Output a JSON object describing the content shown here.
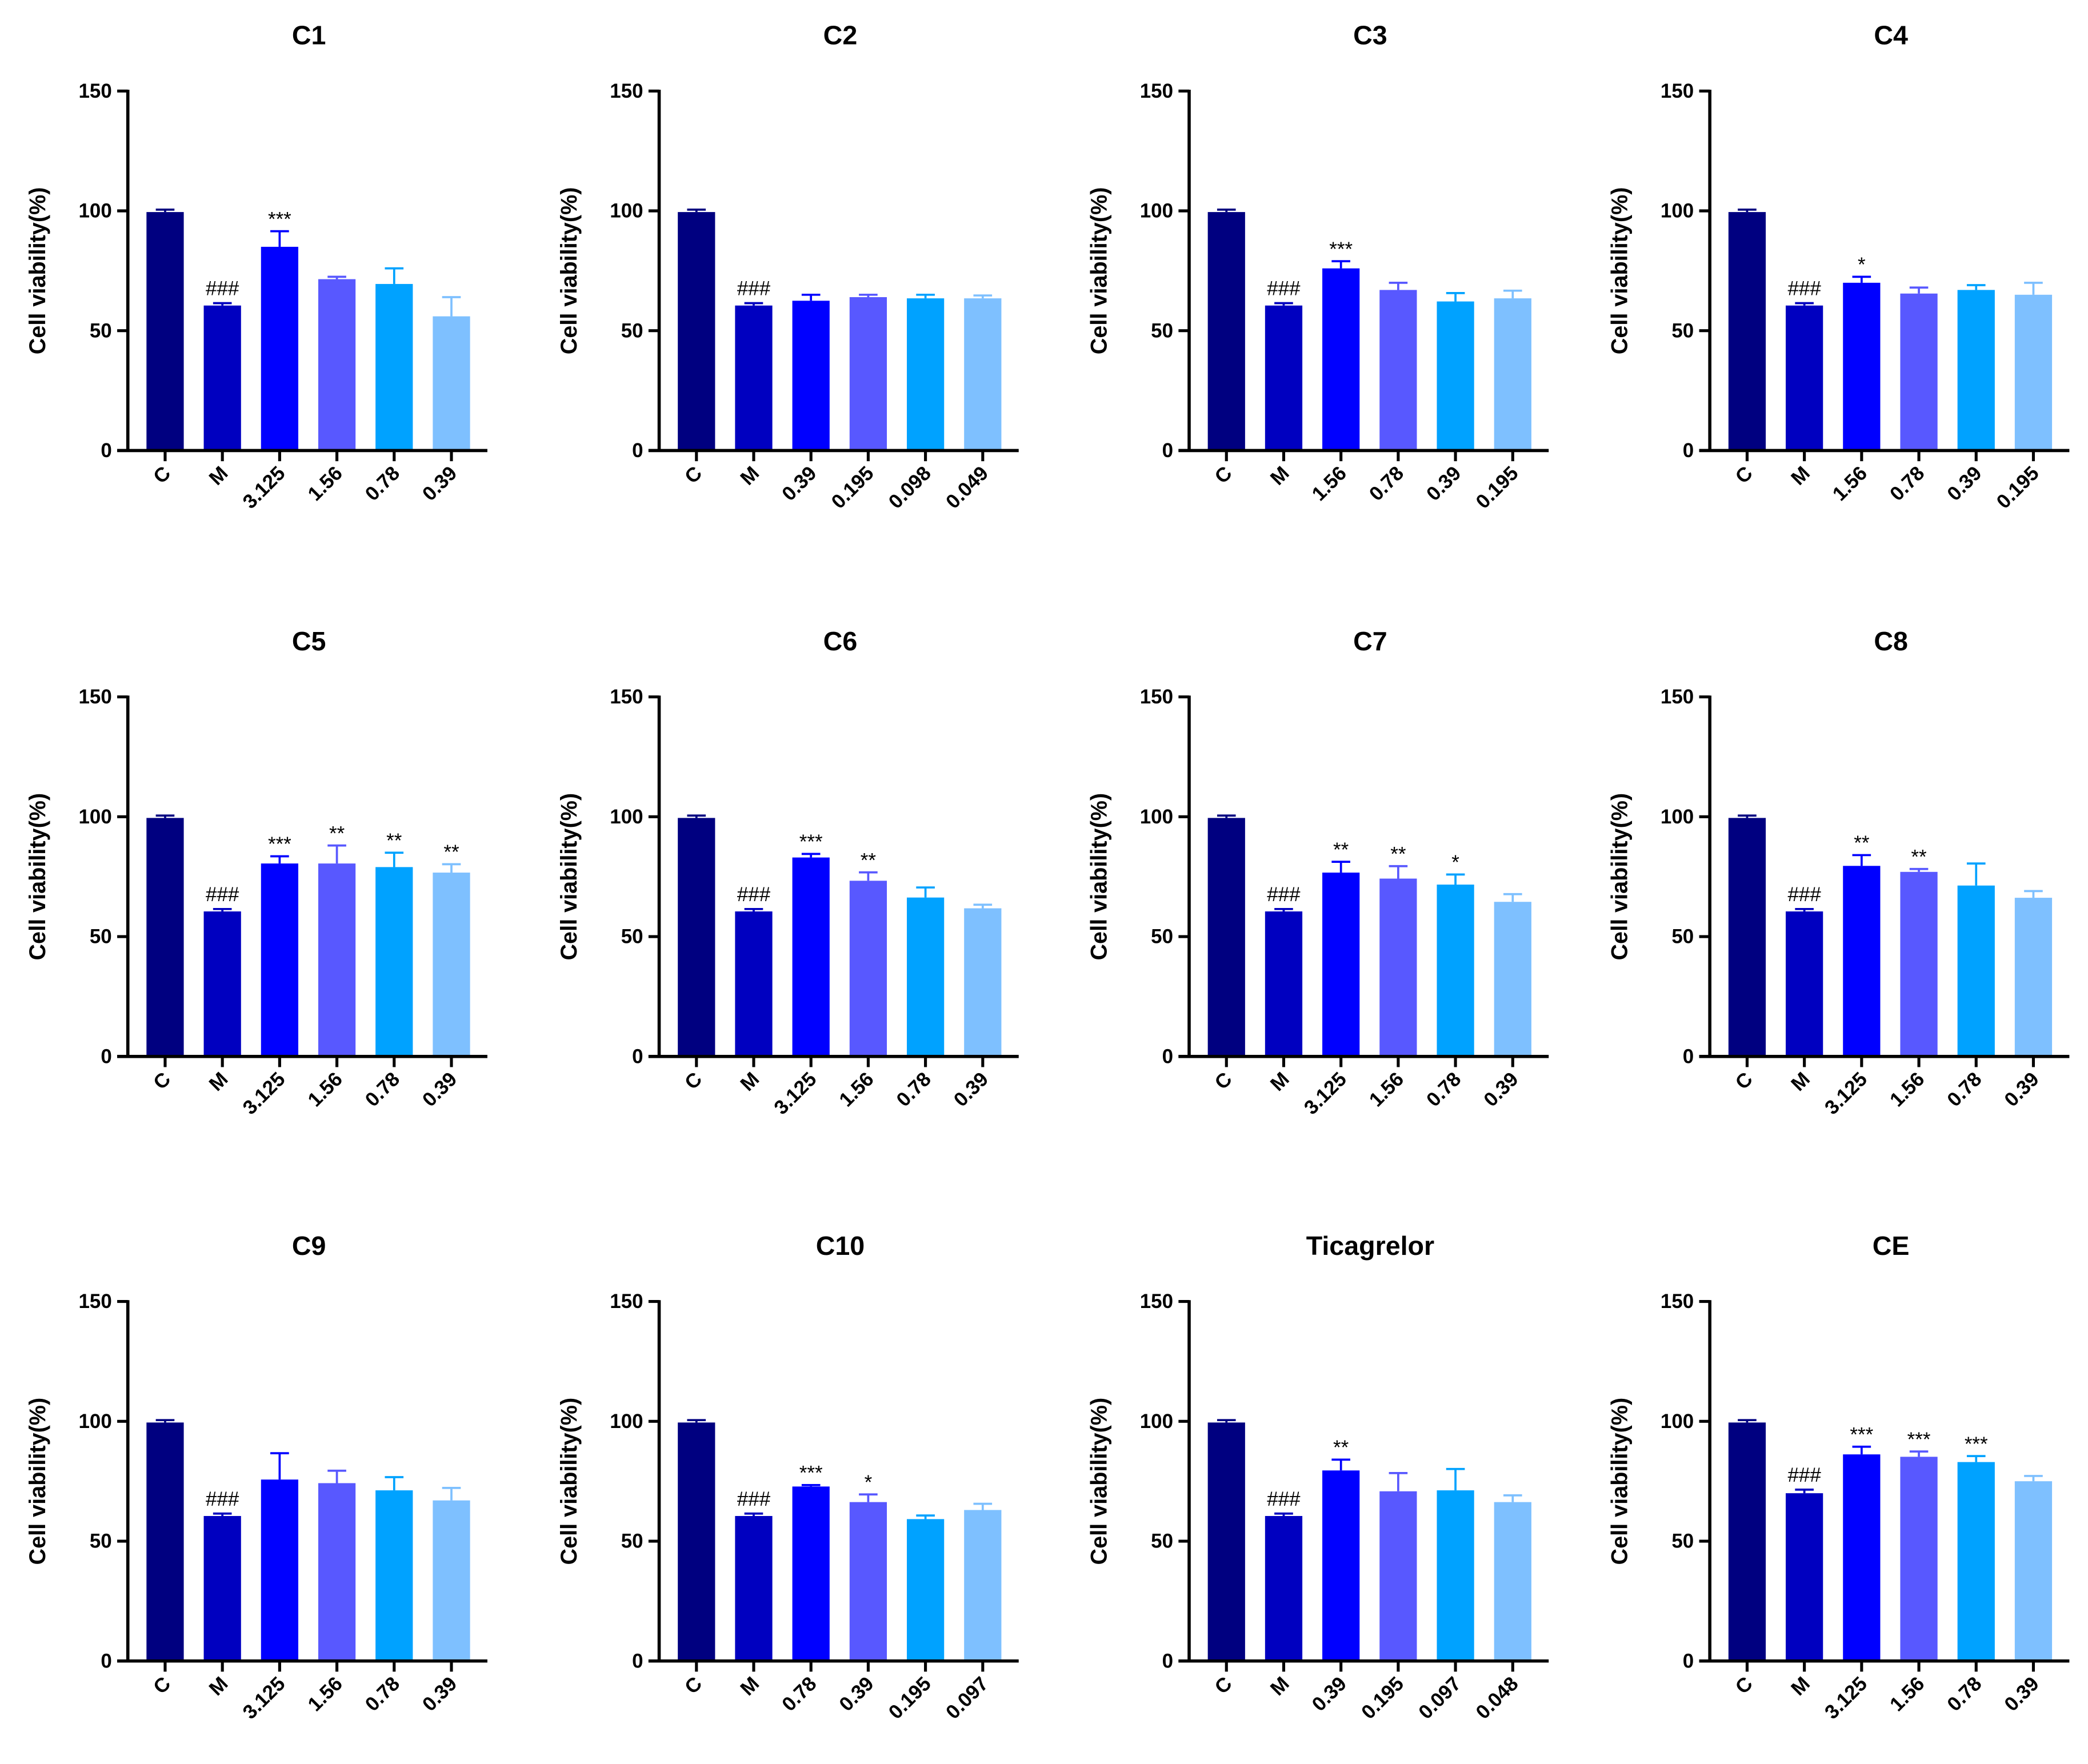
{
  "colors": [
    "#000080",
    "#0000C0",
    "#0000FF",
    "#5858FF",
    "#00A2FF",
    "#7EC0FF"
  ],
  "chart_data": [
    {
      "type": "bar",
      "title": "C1",
      "ylabel": "Cell viability(%)",
      "ylim": [
        0,
        150
      ],
      "yticks": [
        0,
        50,
        100,
        150
      ],
      "categories": [
        "C",
        "M",
        "3.125",
        "1.56",
        "0.78",
        "0.39"
      ],
      "values": [
        99.5,
        60.5,
        85,
        71.5,
        69.5,
        56
      ],
      "errors": [
        1,
        1,
        6.5,
        1,
        6.5,
        8
      ],
      "annotations": [
        "",
        "###",
        "***",
        "",
        "",
        ""
      ]
    },
    {
      "type": "bar",
      "title": "C2",
      "ylabel": "Cell viability(%)",
      "ylim": [
        0,
        150
      ],
      "yticks": [
        0,
        50,
        100,
        150
      ],
      "categories": [
        "C",
        "M",
        "0.39",
        "0.195",
        "0.098",
        "0.049"
      ],
      "values": [
        99.5,
        60.5,
        62.5,
        64,
        63.5,
        63.5
      ],
      "errors": [
        1,
        1,
        2.5,
        1,
        1.5,
        1.2
      ],
      "annotations": [
        "",
        "###",
        "",
        "",
        "",
        ""
      ]
    },
    {
      "type": "bar",
      "title": "C3",
      "ylabel": "Cell viability(%)",
      "ylim": [
        0,
        150
      ],
      "yticks": [
        0,
        50,
        100,
        150
      ],
      "categories": [
        "C",
        "M",
        "1.56",
        "0.78",
        "0.39",
        "0.195"
      ],
      "values": [
        99.5,
        60.5,
        76,
        67,
        62.2,
        63.5
      ],
      "errors": [
        1,
        1,
        3,
        3,
        3.5,
        3.2
      ],
      "annotations": [
        "",
        "###",
        "***",
        "",
        "",
        ""
      ]
    },
    {
      "type": "bar",
      "title": "C4",
      "ylabel": "Cell viability(%)",
      "ylim": [
        0,
        150
      ],
      "yticks": [
        0,
        50,
        100,
        150
      ],
      "categories": [
        "C",
        "M",
        "1.56",
        "0.78",
        "0.39",
        "0.195"
      ],
      "values": [
        99.5,
        60.5,
        70,
        65.5,
        67,
        65
      ],
      "errors": [
        1,
        1,
        2.5,
        2.5,
        2,
        5
      ],
      "annotations": [
        "",
        "###",
        "*",
        "",
        "",
        ""
      ]
    },
    {
      "type": "bar",
      "title": "C5",
      "ylabel": "Cell viability(%)",
      "ylim": [
        0,
        150
      ],
      "yticks": [
        0,
        50,
        100,
        150
      ],
      "categories": [
        "C",
        "M",
        "3.125",
        "1.56",
        "0.78",
        "0.39"
      ],
      "values": [
        99.5,
        60.5,
        80.5,
        80.5,
        79,
        76.7
      ],
      "errors": [
        1,
        1,
        3,
        7.5,
        6,
        3.5
      ],
      "annotations": [
        "",
        "###",
        "***",
        "**",
        "**",
        "**"
      ]
    },
    {
      "type": "bar",
      "title": "C6",
      "ylabel": "Cell viability(%)",
      "ylim": [
        0,
        150
      ],
      "yticks": [
        0,
        50,
        100,
        150
      ],
      "categories": [
        "C",
        "M",
        "3.125",
        "1.56",
        "0.78",
        "0.39"
      ],
      "values": [
        99.5,
        60.5,
        83,
        73.3,
        66.3,
        61.8
      ],
      "errors": [
        1,
        1,
        1.5,
        3.5,
        4.2,
        1.5
      ],
      "annotations": [
        "",
        "###",
        "***",
        "**",
        "",
        ""
      ]
    },
    {
      "type": "bar",
      "title": "C7",
      "ylabel": "Cell viability(%)",
      "ylim": [
        0,
        150
      ],
      "yticks": [
        0,
        50,
        100,
        150
      ],
      "categories": [
        "C",
        "M",
        "3.125",
        "1.56",
        "0.78",
        "0.39"
      ],
      "values": [
        99.5,
        60.5,
        76.7,
        74.2,
        71.7,
        64.5
      ],
      "errors": [
        1,
        1,
        4.5,
        5.2,
        4.2,
        3.2
      ],
      "annotations": [
        "",
        "###",
        "**",
        "**",
        "*",
        ""
      ]
    },
    {
      "type": "bar",
      "title": "C8",
      "ylabel": "Cell viability(%)",
      "ylim": [
        0,
        150
      ],
      "yticks": [
        0,
        50,
        100,
        150
      ],
      "categories": [
        "C",
        "M",
        "3.125",
        "1.56",
        "0.78",
        "0.39"
      ],
      "values": [
        99.5,
        60.5,
        79.5,
        77,
        71.3,
        66.2
      ],
      "errors": [
        1,
        1,
        4.5,
        1.2,
        9.2,
        2.8
      ],
      "annotations": [
        "",
        "###",
        "**",
        "**",
        "",
        ""
      ]
    },
    {
      "type": "bar",
      "title": "C9",
      "ylabel": "Cell viability(%)",
      "ylim": [
        0,
        150
      ],
      "yticks": [
        0,
        50,
        100,
        150
      ],
      "categories": [
        "C",
        "M",
        "3.125",
        "1.56",
        "0.78",
        "0.39"
      ],
      "values": [
        99.5,
        60.5,
        75.7,
        74.2,
        71.2,
        67
      ],
      "errors": [
        1,
        1,
        11,
        5.2,
        5.5,
        5.2
      ],
      "annotations": [
        "",
        "###",
        "",
        "",
        "",
        ""
      ]
    },
    {
      "type": "bar",
      "title": "C10",
      "ylabel": "Cell viability(%)",
      "ylim": [
        0,
        150
      ],
      "yticks": [
        0,
        50,
        100,
        150
      ],
      "categories": [
        "C",
        "M",
        "0.78",
        "0.39",
        "0.195",
        "0.097"
      ],
      "values": [
        99.5,
        60.5,
        72.8,
        66.3,
        59.2,
        63
      ],
      "errors": [
        1,
        1,
        0.6,
        3.2,
        1.5,
        2.6
      ],
      "annotations": [
        "",
        "###",
        "***",
        "*",
        "",
        ""
      ]
    },
    {
      "type": "bar",
      "title": "Ticagrelor",
      "ylabel": "Cell viability(%)",
      "ylim": [
        0,
        150
      ],
      "yticks": [
        0,
        50,
        100,
        150
      ],
      "categories": [
        "C",
        "M",
        "0.39",
        "0.195",
        "0.097",
        "0.048"
      ],
      "values": [
        99.5,
        60.5,
        79.5,
        70.8,
        71.2,
        66.3
      ],
      "errors": [
        1,
        1,
        4.5,
        7.6,
        8.9,
        2.8
      ],
      "annotations": [
        "",
        "###",
        "**",
        "",
        "",
        ""
      ]
    },
    {
      "type": "bar",
      "title": "CE",
      "ylabel": "Cell viability(%)",
      "ylim": [
        0,
        150
      ],
      "yticks": [
        0,
        50,
        100,
        150
      ],
      "categories": [
        "C",
        "M",
        "3.125",
        "1.56",
        "0.78",
        "0.39"
      ],
      "values": [
        99.5,
        70,
        86.2,
        85.2,
        83,
        75
      ],
      "errors": [
        1,
        1.5,
        3.2,
        2.2,
        2.5,
        2.2
      ],
      "annotations": [
        "",
        "###",
        "***",
        "***",
        "***",
        ""
      ]
    }
  ]
}
